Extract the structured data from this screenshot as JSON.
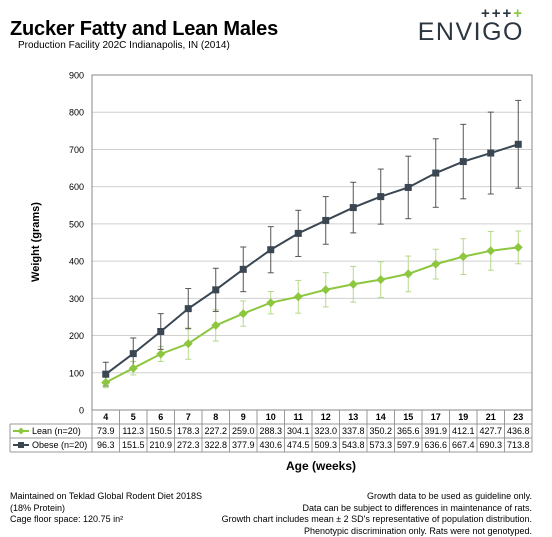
{
  "header": {
    "title": "Zucker Fatty and Lean Males",
    "subtitle": "Production Facility 202C Indianapolis, IN (2014)"
  },
  "logo": {
    "crosses_dark": "+++",
    "crosses_green": "+",
    "wordmark": "ENVIGO",
    "colors": {
      "dark": "#2b3640",
      "green": "#8dc63f"
    }
  },
  "chart_data": {
    "type": "line",
    "title": "Zucker Fatty and Lean Males",
    "xlabel": "Age (weeks)",
    "ylabel": "Weight (grams)",
    "ylim": [
      0,
      900
    ],
    "yticks": [
      0,
      100,
      200,
      300,
      400,
      500,
      600,
      700,
      800,
      900
    ],
    "grid": true,
    "legend": "table-left",
    "categories": [
      "4",
      "5",
      "6",
      "7",
      "8",
      "9",
      "10",
      "11",
      "12",
      "13",
      "14",
      "15",
      "17",
      "19",
      "21",
      "23"
    ],
    "series": [
      {
        "name": "Lean (n=20)",
        "color": "#8dc63f",
        "marker": "diamond",
        "values": [
          73.9,
          112.3,
          150.5,
          178.3,
          227.2,
          259.0,
          288.3,
          304.1,
          323.0,
          337.8,
          350.2,
          365.6,
          391.9,
          412.1,
          427.7,
          436.8
        ],
        "value_labels": [
          "73.9",
          "112.3",
          "150.5",
          "178.3",
          "227.2",
          "259.0",
          "288.3",
          "304.1",
          "323.0",
          "337.8",
          "350.2",
          "365.6",
          "391.9",
          "412.1",
          "427.7",
          "436.8"
        ],
        "sd2": [
          14,
          18,
          20,
          42,
          42,
          34,
          30,
          44,
          46,
          48,
          48,
          48,
          40,
          48,
          52,
          44
        ]
      },
      {
        "name": "Obese (n=20)",
        "color": "#3a4651",
        "marker": "square",
        "values": [
          96.3,
          151.5,
          210.9,
          272.3,
          322.8,
          377.9,
          430.6,
          474.5,
          509.3,
          543.8,
          573.3,
          597.9,
          636.6,
          667.4,
          690.3,
          713.8
        ],
        "value_labels": [
          "96.3",
          "151.5",
          "210.9",
          "272.3",
          "322.8",
          "377.9",
          "430.6",
          "474.5",
          "509.3",
          "543.8",
          "573.3",
          "597.9",
          "636.6",
          "667.4",
          "690.3",
          "713.8"
        ],
        "sd2": [
          32,
          42,
          48,
          54,
          58,
          60,
          62,
          62,
          64,
          68,
          74,
          84,
          92,
          100,
          110,
          118
        ]
      }
    ]
  },
  "footer": {
    "left": [
      "Maintained on Teklad Global Rodent Diet 2018S",
      "(18% Protein)",
      "Cage floor space: 120.75 in²"
    ],
    "right": [
      "Growth data to be used as guideline only.",
      "Data can be subject to differences in maintenance of rats.",
      "Growth chart includes mean ± 2 SD's representative of population distribution.",
      "Phenotypic discrimination only.  Rats were not genotyped."
    ]
  }
}
